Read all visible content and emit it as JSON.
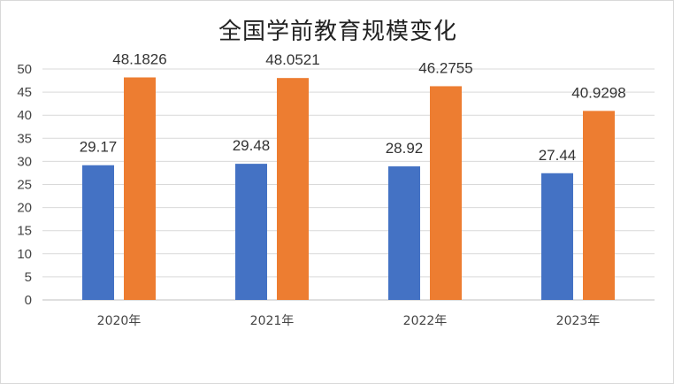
{
  "chart_data": {
    "type": "bar",
    "title": "全国学前教育规模变化",
    "categories": [
      "2020年",
      "2021年",
      "2022年",
      "2023年"
    ],
    "series": [
      {
        "values": [
          29.17,
          29.48,
          28.92,
          27.44
        ],
        "color": "#4472c4"
      },
      {
        "values": [
          48.1826,
          48.0521,
          46.2755,
          40.9298
        ],
        "color": "#ed7d31"
      }
    ],
    "data_labels": [
      [
        "29.17",
        "29.48",
        "28.92",
        "27.44"
      ],
      [
        "48.1826",
        "48.0521",
        "46.2755",
        "40.9298"
      ]
    ],
    "ylim": [
      0,
      50
    ],
    "yticks": [
      "0",
      "5",
      "10",
      "15",
      "20",
      "25",
      "30",
      "35",
      "40",
      "45",
      "50"
    ],
    "grid": true,
    "legend": "none"
  }
}
